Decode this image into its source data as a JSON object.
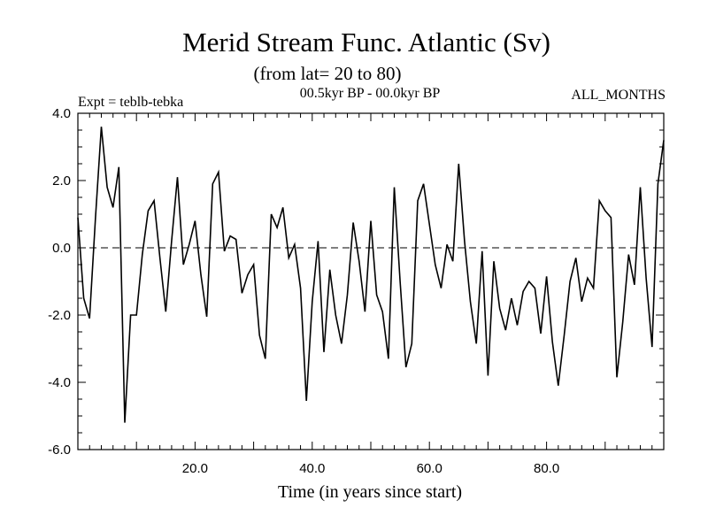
{
  "chart_data": {
    "type": "line",
    "title": "Merid Stream Func. Atlantic (Sv)",
    "subtitle": "(from lat= 20 to 80)",
    "time_range": "00.5kyr BP - 00.0kyr BP",
    "experiment": "Expt = teblb-tebka",
    "months": "ALL_MONTHS",
    "xlabel": "Time (in years since start)",
    "ylabel": "",
    "xlim": [
      0,
      100
    ],
    "ylim": [
      -6.0,
      4.0
    ],
    "xticks": [
      20,
      40,
      60,
      80
    ],
    "xtick_labels": [
      "20.0",
      "40.0",
      "60.0",
      "80.0"
    ],
    "yticks": [
      -6,
      -4,
      -2,
      0,
      2,
      4
    ],
    "ytick_labels": [
      "-6.0",
      "-4.0",
      "-2.0",
      "0.0",
      "2.0",
      "4.0"
    ],
    "zero_line": true,
    "grid": false,
    "x": [
      0,
      1,
      2,
      3,
      4,
      5,
      6,
      7,
      8,
      9,
      10,
      11,
      12,
      13,
      14,
      15,
      16,
      17,
      18,
      19,
      20,
      21,
      22,
      23,
      24,
      25,
      26,
      27,
      28,
      29,
      30,
      31,
      32,
      33,
      34,
      35,
      36,
      37,
      38,
      39,
      40,
      41,
      42,
      43,
      44,
      45,
      46,
      47,
      48,
      49,
      50,
      51,
      52,
      53,
      54,
      55,
      56,
      57,
      58,
      59,
      60,
      61,
      62,
      63,
      64,
      65,
      66,
      67,
      68,
      69,
      70,
      71,
      72,
      73,
      74,
      75,
      76,
      77,
      78,
      79,
      80,
      81,
      82,
      83,
      84,
      85,
      86,
      87,
      88,
      89,
      90,
      91,
      92,
      93,
      94,
      95,
      96,
      97,
      98,
      99,
      100
    ],
    "series": [
      {
        "name": "Merid Stream Func.",
        "values": [
          0.9,
          -1.5,
          -2.1,
          0.9,
          3.6,
          1.8,
          1.2,
          2.4,
          -5.2,
          -2.0,
          -2.0,
          -0.2,
          1.1,
          1.4,
          -0.3,
          -1.9,
          0.2,
          2.1,
          -0.5,
          0.1,
          0.8,
          -0.8,
          -2.05,
          1.9,
          2.25,
          -0.1,
          0.35,
          0.25,
          -1.35,
          -0.8,
          -0.5,
          -2.6,
          -3.3,
          1.0,
          0.6,
          1.2,
          -0.3,
          0.1,
          -1.2,
          -4.55,
          -1.6,
          0.2,
          -3.1,
          -0.65,
          -2.0,
          -2.85,
          -1.4,
          0.75,
          -0.4,
          -1.9,
          0.8,
          -1.4,
          -1.9,
          -3.3,
          1.8,
          -1.0,
          -3.55,
          -2.85,
          1.4,
          1.9,
          0.7,
          -0.5,
          -1.2,
          0.1,
          -0.4,
          2.5,
          0.2,
          -1.6,
          -2.85,
          -0.1,
          -3.8,
          -0.4,
          -1.8,
          -2.45,
          -1.5,
          -2.3,
          -1.3,
          -1.0,
          -1.2,
          -2.55,
          -0.85,
          -2.8,
          -4.1,
          -2.6,
          -1.0,
          -0.3,
          -1.6,
          -0.9,
          -1.2,
          1.4,
          1.1,
          0.9,
          -3.85,
          -2.2,
          -0.2,
          -1.1,
          1.8,
          -0.9,
          -2.95,
          1.9,
          3.2
        ]
      }
    ]
  }
}
